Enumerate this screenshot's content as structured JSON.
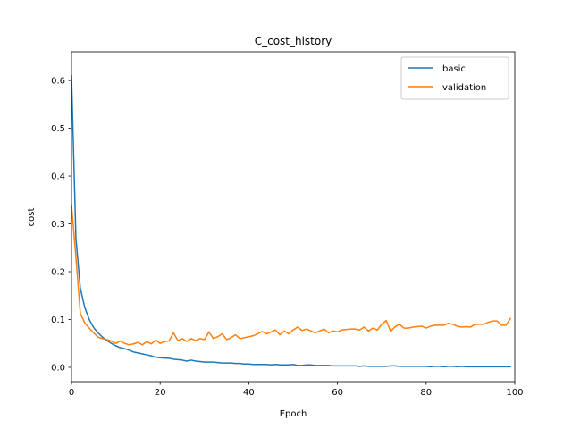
{
  "chart_data": {
    "type": "line",
    "title": "C_cost_history",
    "xlabel": "Epoch",
    "ylabel": "cost",
    "xlim": [
      0,
      100
    ],
    "ylim": [
      -0.03,
      0.66
    ],
    "xticks": [
      0,
      20,
      40,
      60,
      80,
      100
    ],
    "yticks": [
      0.0,
      0.1,
      0.2,
      0.3,
      0.4,
      0.5,
      0.6
    ],
    "ytick_labels": [
      "0.0",
      "0.1",
      "0.2",
      "0.3",
      "0.4",
      "0.5",
      "0.6"
    ],
    "grid": false,
    "legend_position": "top-right",
    "series": [
      {
        "name": "basic",
        "color": "#1f77b4",
        "x": [
          0,
          1,
          2,
          3,
          4,
          5,
          6,
          7,
          8,
          9,
          10,
          11,
          12,
          13,
          14,
          15,
          16,
          17,
          18,
          19,
          20,
          21,
          22,
          23,
          24,
          25,
          26,
          27,
          28,
          29,
          30,
          31,
          32,
          33,
          34,
          35,
          36,
          37,
          38,
          39,
          40,
          41,
          42,
          43,
          44,
          45,
          46,
          47,
          48,
          49,
          50,
          51,
          52,
          53,
          54,
          55,
          56,
          57,
          58,
          59,
          60,
          61,
          62,
          63,
          64,
          65,
          66,
          67,
          68,
          69,
          70,
          71,
          72,
          73,
          74,
          75,
          76,
          77,
          78,
          79,
          80,
          81,
          82,
          83,
          84,
          85,
          86,
          87,
          88,
          89,
          90,
          91,
          92,
          93,
          94,
          95,
          96,
          97,
          98,
          99
        ],
        "values": [
          0.61,
          0.27,
          0.165,
          0.125,
          0.1,
          0.083,
          0.072,
          0.063,
          0.056,
          0.05,
          0.045,
          0.041,
          0.039,
          0.036,
          0.032,
          0.03,
          0.028,
          0.026,
          0.024,
          0.021,
          0.02,
          0.019,
          0.019,
          0.017,
          0.016,
          0.015,
          0.013,
          0.015,
          0.013,
          0.012,
          0.011,
          0.011,
          0.011,
          0.01,
          0.009,
          0.009,
          0.009,
          0.008,
          0.008,
          0.007,
          0.007,
          0.006,
          0.006,
          0.006,
          0.006,
          0.005,
          0.006,
          0.005,
          0.005,
          0.005,
          0.006,
          0.004,
          0.004,
          0.005,
          0.005,
          0.004,
          0.004,
          0.004,
          0.004,
          0.003,
          0.003,
          0.003,
          0.003,
          0.003,
          0.003,
          0.002,
          0.003,
          0.002,
          0.002,
          0.002,
          0.002,
          0.002,
          0.003,
          0.003,
          0.002,
          0.002,
          0.002,
          0.002,
          0.002,
          0.002,
          0.002,
          0.001,
          0.002,
          0.002,
          0.001,
          0.002,
          0.002,
          0.001,
          0.002,
          0.001,
          0.001,
          0.001,
          0.001,
          0.001,
          0.001,
          0.001,
          0.001,
          0.001,
          0.001,
          0.001
        ]
      },
      {
        "name": "validation",
        "color": "#ff7f0e",
        "x": [
          0,
          1,
          2,
          3,
          4,
          5,
          6,
          7,
          8,
          9,
          10,
          11,
          12,
          13,
          14,
          15,
          16,
          17,
          18,
          19,
          20,
          21,
          22,
          23,
          24,
          25,
          26,
          27,
          28,
          29,
          30,
          31,
          32,
          33,
          34,
          35,
          36,
          37,
          38,
          39,
          40,
          41,
          42,
          43,
          44,
          45,
          46,
          47,
          48,
          49,
          50,
          51,
          52,
          53,
          54,
          55,
          56,
          57,
          58,
          59,
          60,
          61,
          62,
          63,
          64,
          65,
          66,
          67,
          68,
          69,
          70,
          71,
          72,
          73,
          74,
          75,
          76,
          77,
          78,
          79,
          80,
          81,
          82,
          83,
          84,
          85,
          86,
          87,
          88,
          89,
          90,
          91,
          92,
          93,
          94,
          95,
          96,
          97,
          98,
          99
        ],
        "values": [
          0.34,
          0.23,
          0.112,
          0.093,
          0.082,
          0.072,
          0.063,
          0.06,
          0.058,
          0.055,
          0.05,
          0.055,
          0.05,
          0.047,
          0.049,
          0.052,
          0.047,
          0.054,
          0.049,
          0.057,
          0.05,
          0.054,
          0.055,
          0.072,
          0.056,
          0.06,
          0.054,
          0.06,
          0.056,
          0.06,
          0.058,
          0.074,
          0.06,
          0.064,
          0.07,
          0.058,
          0.062,
          0.068,
          0.06,
          0.062,
          0.064,
          0.066,
          0.07,
          0.075,
          0.07,
          0.074,
          0.078,
          0.068,
          0.076,
          0.07,
          0.078,
          0.084,
          0.077,
          0.08,
          0.076,
          0.072,
          0.076,
          0.08,
          0.072,
          0.076,
          0.074,
          0.078,
          0.079,
          0.08,
          0.08,
          0.078,
          0.084,
          0.076,
          0.082,
          0.078,
          0.09,
          0.098,
          0.075,
          0.085,
          0.09,
          0.082,
          0.082,
          0.084,
          0.085,
          0.086,
          0.082,
          0.086,
          0.088,
          0.088,
          0.088,
          0.092,
          0.09,
          0.086,
          0.084,
          0.085,
          0.084,
          0.09,
          0.09,
          0.09,
          0.094,
          0.097,
          0.097,
          0.088,
          0.088,
          0.102
        ]
      }
    ]
  }
}
